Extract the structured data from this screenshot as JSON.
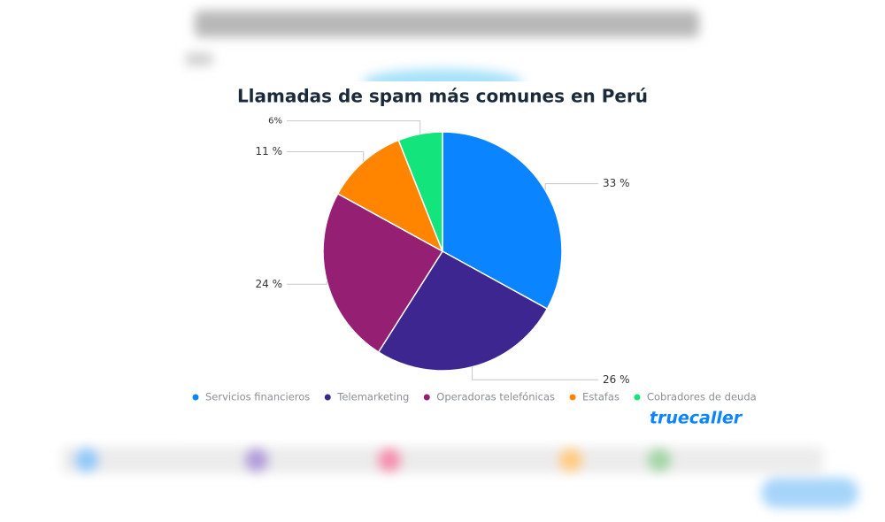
{
  "chart_data": {
    "type": "pie",
    "title": "Llamadas de spam más comunes en Perú",
    "categories": [
      "Servicios financieros",
      "Telemarketing",
      "Operadoras telefónicas",
      "Estafas",
      "Cobradores de deuda"
    ],
    "values": [
      33,
      26,
      24,
      11,
      6
    ],
    "value_labels": [
      "33 %",
      "26 %",
      "24 %",
      "11 %",
      "6%"
    ],
    "colors": [
      "#0a84ff",
      "#3d2690",
      "#951f72",
      "#ff8400",
      "#14e47c"
    ],
    "legend": "bottom"
  },
  "brand": "truecaller"
}
